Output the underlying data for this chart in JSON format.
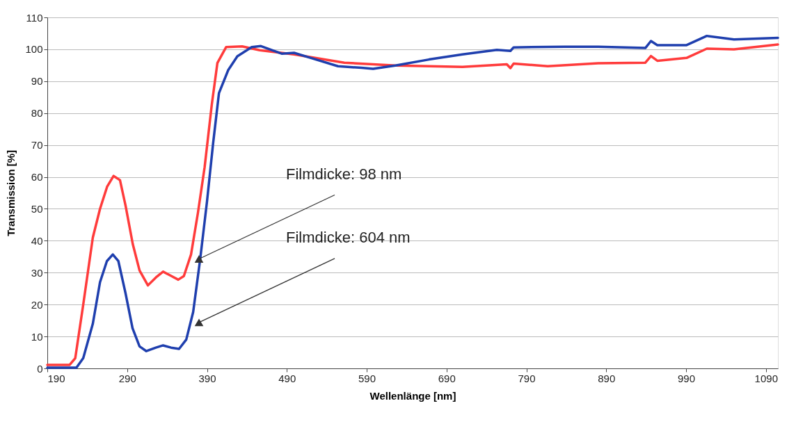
{
  "chart_data": {
    "type": "line",
    "xlabel": "Wellenlänge [nm]",
    "ylabel": "Transmission [%]",
    "xlim": [
      190,
      1105
    ],
    "ylim": [
      0,
      110
    ],
    "xticks": [
      190,
      290,
      390,
      490,
      590,
      690,
      790,
      890,
      990,
      1090
    ],
    "yticks": [
      0,
      10,
      20,
      30,
      40,
      50,
      60,
      70,
      80,
      90,
      100,
      110
    ],
    "grid": "y",
    "line_style": "solid",
    "marker": "none",
    "series": [
      {
        "color": "#ff3b3b",
        "x": [
          190,
          218,
          225,
          235,
          247,
          256,
          265,
          273,
          281,
          288,
          297,
          305.5,
          316,
          326,
          335,
          343.5,
          354,
          361,
          370,
          378.6,
          387,
          396,
          403,
          414,
          434,
          456,
          499,
          562,
          626,
          710,
          765.5,
          770,
          774,
          816.7,
          880,
          939,
          946,
          954,
          990.6,
          1016,
          1050,
          1105
        ],
        "values": [
          1.1,
          1.1,
          3.2,
          20,
          41,
          50,
          57,
          60.3,
          59,
          51,
          39,
          30.7,
          26,
          28.5,
          30.3,
          29.2,
          27.8,
          28.9,
          35.7,
          48.7,
          63,
          82.7,
          95.7,
          100.7,
          100.9,
          99.7,
          98.4,
          95.8,
          94.9,
          94.5,
          95.3,
          94.1,
          95.5,
          94.7,
          95.6,
          95.8,
          97.9,
          96.4,
          97.3,
          100.2,
          100,
          101.5
        ]
      },
      {
        "color": "#1f3fae",
        "x": [
          190,
          226.5,
          235,
          247,
          256,
          264.6,
          272,
          279,
          288,
          296.7,
          305.5,
          314,
          326,
          335,
          345,
          355,
          364,
          372.7,
          381.5,
          390,
          397.6,
          405,
          416.6,
          428,
          446,
          457.5,
          484,
          499,
          520,
          554,
          583.5,
          598,
          626,
          668,
          710,
          753,
          770,
          774,
          838,
          880,
          939,
          946,
          954,
          990.6,
          1016,
          1050,
          1105
        ],
        "values": [
          0.2,
          0.2,
          3.2,
          14,
          27,
          33.6,
          35.7,
          33.6,
          23.5,
          12.6,
          6.9,
          5.4,
          6.5,
          7.2,
          6.5,
          6.1,
          9,
          17.7,
          34.3,
          52.3,
          70.4,
          86.3,
          93.5,
          97.8,
          100.7,
          101,
          98.6,
          98.9,
          97.3,
          94.7,
          94.2,
          93.9,
          94.9,
          96.8,
          98.4,
          99.8,
          99.5,
          100.6,
          100.8,
          100.8,
          100.4,
          102.6,
          101.3,
          101.3,
          104.2,
          103.1,
          103.6
        ]
      }
    ],
    "annotations": [
      {
        "text": "Filmdicke: 98 nm",
        "x": 380,
        "y": 34.3
      },
      {
        "text": "Filmdicke: 604 nm",
        "x": 380,
        "y": 14.4
      }
    ]
  }
}
